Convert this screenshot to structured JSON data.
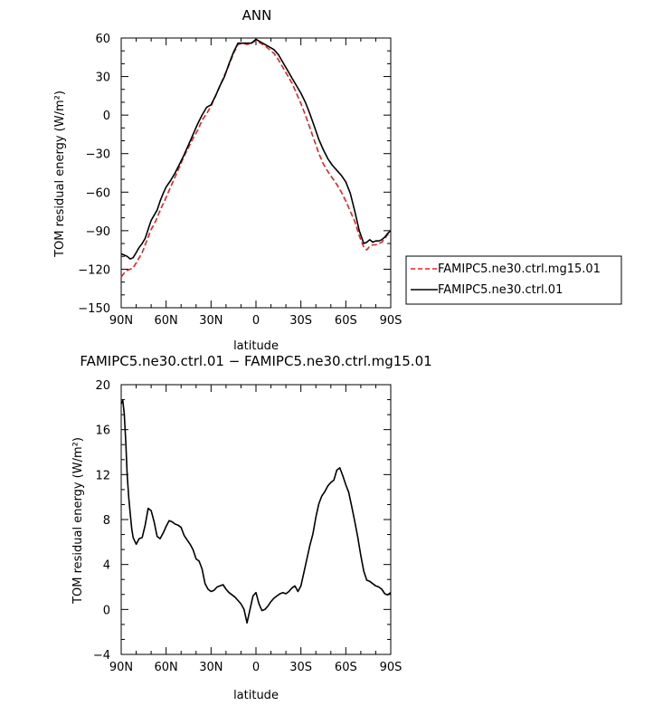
{
  "chart_data": [
    {
      "type": "line",
      "title": "ANN",
      "xlabel": "latitude",
      "ylabel": "TOM residual energy (W/m²)",
      "x_direction": "90N to 90S (north on left)",
      "xlim": [
        90,
        -90
      ],
      "ylim": [
        -150,
        60
      ],
      "xticks": [
        90,
        60,
        30,
        0,
        -30,
        -60,
        -90
      ],
      "xtick_labels": [
        "90N",
        "60N",
        "30N",
        "0",
        "30S",
        "60S",
        "90S"
      ],
      "yticks": [
        -150,
        -120,
        -90,
        -60,
        -30,
        0,
        30,
        60
      ],
      "ytick_labels": [
        "−150",
        "−120",
        "−90",
        "−60",
        "−30",
        "0",
        "30",
        "60"
      ],
      "grid": false,
      "legend_position": "right, outside plot",
      "series": [
        {
          "name": "FAMIPC5.ne30.ctrl.mg15.01",
          "color": "#e8231f",
          "style": "dashed",
          "x": [
            90,
            88,
            86,
            84,
            82,
            80,
            78,
            76,
            74,
            72,
            70,
            68,
            66,
            64,
            62,
            60,
            57,
            54,
            51,
            48,
            45,
            42,
            39,
            36,
            33,
            30,
            27,
            24,
            21,
            18,
            15,
            12,
            9,
            6,
            3,
            0,
            -3,
            -6,
            -9,
            -12,
            -15,
            -18,
            -21,
            -24,
            -27,
            -30,
            -33,
            -36,
            -39,
            -42,
            -45,
            -48,
            -51,
            -54,
            -57,
            -60,
            -63,
            -66,
            -69,
            -72,
            -74,
            -76,
            -78,
            -80,
            -82,
            -84,
            -86,
            -88,
            -90
          ],
          "y": [
            -126,
            -123,
            -121,
            -120,
            -119,
            -115,
            -111,
            -107,
            -101,
            -95,
            -89,
            -85,
            -80,
            -74,
            -69,
            -64,
            -56,
            -48,
            -40,
            -32,
            -25,
            -18,
            -12,
            -4,
            1,
            7,
            15,
            23,
            31,
            39,
            48,
            55,
            56,
            55,
            56,
            58,
            56,
            54,
            51,
            48,
            43,
            37,
            31,
            25,
            17,
            9,
            0,
            -10,
            -20,
            -30,
            -38,
            -44,
            -49,
            -54,
            -60,
            -67,
            -75,
            -83,
            -94,
            -103,
            -105,
            -102,
            -101,
            -101,
            -100,
            -99,
            -96,
            -93,
            -91
          ]
        },
        {
          "name": "FAMIPC5.ne30.ctrl.01",
          "color": "#000000",
          "style": "solid",
          "x": [
            90,
            88,
            86,
            84,
            82,
            80,
            78,
            76,
            74,
            72,
            70,
            68,
            66,
            64,
            62,
            60,
            57,
            54,
            51,
            48,
            45,
            42,
            39,
            36,
            33,
            30,
            27,
            24,
            21,
            18,
            15,
            12,
            9,
            6,
            3,
            0,
            -3,
            -6,
            -9,
            -12,
            -15,
            -18,
            -21,
            -24,
            -27,
            -30,
            -33,
            -36,
            -39,
            -42,
            -45,
            -48,
            -51,
            -54,
            -57,
            -60,
            -63,
            -66,
            -69,
            -72,
            -74,
            -76,
            -78,
            -80,
            -82,
            -84,
            -86,
            -88,
            -90
          ],
          "y": [
            -108,
            -109,
            -110,
            -112,
            -111,
            -107,
            -103,
            -100,
            -96,
            -89,
            -82,
            -78,
            -74,
            -67,
            -61,
            -56,
            -51,
            -45,
            -38,
            -31,
            -23,
            -15,
            -7,
            0,
            6,
            8,
            15,
            23,
            30,
            40,
            49,
            56,
            56,
            56,
            56,
            59,
            57,
            55,
            53,
            51,
            47,
            41,
            35,
            29,
            23,
            17,
            10,
            1,
            -9,
            -19,
            -27,
            -34,
            -39,
            -43,
            -47,
            -52,
            -61,
            -75,
            -90,
            -100,
            -99,
            -97,
            -99,
            -98,
            -98,
            -97,
            -95,
            -92,
            -90
          ]
        }
      ]
    },
    {
      "type": "line",
      "title": "FAMIPC5.ne30.ctrl.01 − FAMIPC5.ne30.ctrl.mg15.01",
      "xlabel": "latitude",
      "ylabel": "TOM residual energy (W/m²)",
      "x_direction": "90N to 90S (north on left)",
      "xlim": [
        90,
        -90
      ],
      "ylim": [
        -4,
        20
      ],
      "xticks": [
        90,
        60,
        30,
        0,
        -30,
        -60,
        -90
      ],
      "xtick_labels": [
        "90N",
        "60N",
        "30N",
        "0",
        "30S",
        "60S",
        "90S"
      ],
      "yticks": [
        -4,
        0,
        4,
        8,
        12,
        16,
        20
      ],
      "ytick_labels": [
        "−4",
        "0",
        "4",
        "8",
        "12",
        "16",
        "20"
      ],
      "grid": false,
      "series": [
        {
          "color": "#000000",
          "style": "solid",
          "x": [
            90,
            89,
            88,
            87,
            86,
            85,
            84,
            83,
            82,
            80,
            78,
            76,
            74,
            72,
            70,
            68,
            66,
            64,
            62,
            60,
            58,
            56,
            54,
            52,
            50,
            48,
            46,
            44,
            42,
            40,
            38,
            36,
            34,
            32,
            30,
            28,
            26,
            24,
            22,
            20,
            18,
            16,
            14,
            12,
            10,
            8,
            6,
            4,
            2,
            0,
            -2,
            -4,
            -6,
            -8,
            -10,
            -12,
            -14,
            -16,
            -18,
            -20,
            -22,
            -24,
            -26,
            -28,
            -30,
            -32,
            -34,
            -36,
            -38,
            -40,
            -42,
            -44,
            -46,
            -48,
            -50,
            -52,
            -54,
            -56,
            -58,
            -60,
            -62,
            -64,
            -66,
            -68,
            -70,
            -72,
            -74,
            -76,
            -78,
            -80,
            -82,
            -84,
            -86,
            -88,
            -90
          ],
          "y": [
            18.3,
            18.6,
            17.5,
            15,
            12,
            10,
            8.6,
            7.2,
            6.4,
            5.8,
            6.3,
            6.4,
            7.5,
            9,
            8.8,
            7.8,
            6.5,
            6.3,
            6.8,
            7.4,
            7.9,
            7.8,
            7.6,
            7.5,
            7.3,
            6.6,
            6.2,
            5.8,
            5.3,
            4.5,
            4.3,
            3.6,
            2.3,
            1.8,
            1.6,
            1.7,
            2,
            2.1,
            2.2,
            1.8,
            1.5,
            1.3,
            1.1,
            0.8,
            0.5,
            0,
            -1.2,
            0,
            1.2,
            1.5,
            0.5,
            -0.1,
            0,
            0.3,
            0.7,
            1,
            1.2,
            1.4,
            1.5,
            1.4,
            1.6,
            1.9,
            2.1,
            1.6,
            2.1,
            3.3,
            4.5,
            5.7,
            6.7,
            8.2,
            9.4,
            10.1,
            10.5,
            11,
            11.3,
            11.5,
            12.4,
            12.6,
            11.9,
            11.1,
            10.4,
            9.1,
            7.8,
            6.4,
            4.8,
            3.4,
            2.6,
            2.5,
            2.3,
            2.1,
            2,
            1.8,
            1.4,
            1.3,
            1.5
          ]
        }
      ]
    }
  ]
}
